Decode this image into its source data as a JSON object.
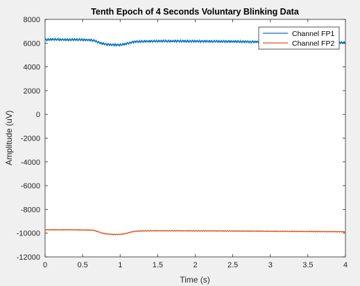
{
  "colors": {
    "figure_bg": "#f0f0f0",
    "axes_bg": "#ffffff",
    "axis": "#262626",
    "series1": "#0072BD",
    "series2": "#D95319"
  },
  "chart_data": {
    "type": "line",
    "title": "Tenth Epoch of 4 Seconds Voluntary Blinking Data",
    "xlabel": "Time (s)",
    "ylabel": "Amplitude (uV)",
    "xlim": [
      0,
      4
    ],
    "ylim": [
      -12000,
      8000
    ],
    "xticks": [
      0,
      0.5,
      1,
      1.5,
      2,
      2.5,
      3,
      3.5,
      4
    ],
    "xtick_labels": [
      "0",
      "0.5",
      "1",
      "1.5",
      "2",
      "2.5",
      "3",
      "3.5",
      "4"
    ],
    "yticks": [
      -12000,
      -10000,
      -8000,
      -6000,
      -4000,
      -2000,
      0,
      2000,
      4000,
      6000,
      8000
    ],
    "ytick_labels": [
      "-12000",
      "-10000",
      "-8000",
      "-6000",
      "-4000",
      "-2000",
      "0",
      "2000",
      "4000",
      "6000",
      "8000"
    ],
    "grid": false,
    "legend_position": "top-right",
    "series": [
      {
        "name": "Channel FP1",
        "color": "#0072BD",
        "x": [
          0,
          0.1,
          0.2,
          0.3,
          0.4,
          0.5,
          0.6,
          0.65,
          0.7,
          0.75,
          0.8,
          0.85,
          0.9,
          0.95,
          1.0,
          1.05,
          1.1,
          1.15,
          1.2,
          1.3,
          1.4,
          1.5,
          1.75,
          2.0,
          2.25,
          2.5,
          2.75,
          3.0,
          3.25,
          3.5,
          3.75,
          4.0
        ],
        "values": [
          6280,
          6320,
          6300,
          6290,
          6300,
          6280,
          6260,
          6220,
          6100,
          5980,
          5920,
          5880,
          5860,
          5850,
          5860,
          5900,
          5980,
          6060,
          6120,
          6150,
          6160,
          6170,
          6170,
          6160,
          6150,
          6140,
          6110,
          6090,
          6080,
          6060,
          6050,
          6040
        ],
        "noise": 130
      },
      {
        "name": "Channel FP2",
        "color": "#D95319",
        "x": [
          0,
          0.1,
          0.2,
          0.3,
          0.4,
          0.5,
          0.6,
          0.65,
          0.7,
          0.75,
          0.8,
          0.85,
          0.9,
          0.95,
          1.0,
          1.05,
          1.1,
          1.15,
          1.2,
          1.3,
          1.4,
          1.5,
          1.75,
          2.0,
          2.25,
          2.5,
          2.75,
          3.0,
          3.25,
          3.5,
          3.75,
          4.0
        ],
        "values": [
          -9720,
          -9710,
          -9720,
          -9710,
          -9720,
          -9730,
          -9740,
          -9760,
          -9860,
          -9980,
          -10050,
          -10080,
          -10100,
          -10110,
          -10100,
          -10060,
          -9990,
          -9900,
          -9840,
          -9810,
          -9800,
          -9800,
          -9800,
          -9810,
          -9810,
          -9820,
          -9830,
          -9840,
          -9850,
          -9860,
          -9870,
          -9880
        ],
        "noise": 40
      }
    ]
  }
}
